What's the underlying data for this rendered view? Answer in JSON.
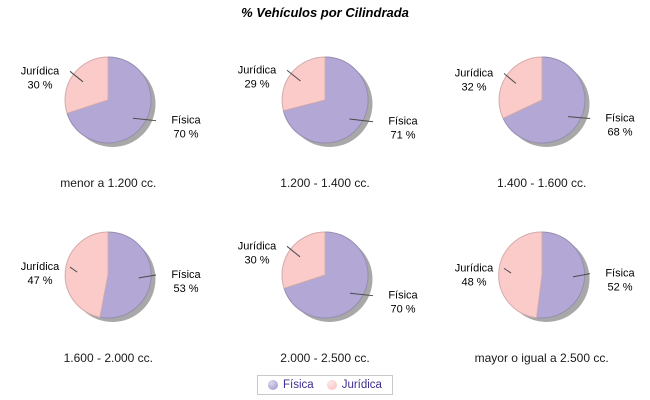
{
  "header": {
    "title": "% Vehículos por Cilindrada"
  },
  "chart_data": {
    "type": "pie",
    "title": "% Vehículos por Cilindrada",
    "legend_position": "bottom",
    "value_suffix": " %",
    "legend": [
      {
        "label": "Física",
        "color": "#b3a8d5"
      },
      {
        "label": "Jurídica",
        "color": "#fbcbca"
      }
    ],
    "style": {
      "shadow_color": "#9e9e9e",
      "leader_line_color": "#4a4a4a",
      "label_text_color": "#000000",
      "legend_text_color": "#3f2d8f",
      "legend_border_color": "#c9c9c9"
    },
    "charts": [
      {
        "category": "menor a 1.200 cc.",
        "labels": [
          "Física",
          "Jurídica"
        ],
        "values": [
          70,
          30
        ],
        "value_labels": [
          "70 %",
          "30 %"
        ]
      },
      {
        "category": "1.200 - 1.400 cc.",
        "labels": [
          "Física",
          "Jurídica"
        ],
        "values": [
          71,
          29
        ],
        "value_labels": [
          "71 %",
          "29 %"
        ]
      },
      {
        "category": "1.400 - 1.600 cc.",
        "labels": [
          "Física",
          "Jurídica"
        ],
        "values": [
          68,
          32
        ],
        "value_labels": [
          "68 %",
          "32 %"
        ]
      },
      {
        "category": "1.600 - 2.000 cc.",
        "labels": [
          "Física",
          "Jurídica"
        ],
        "values": [
          53,
          47
        ],
        "value_labels": [
          "53 %",
          "47 %"
        ]
      },
      {
        "category": "2.000 - 2.500 cc.",
        "labels": [
          "Física",
          "Jurídica"
        ],
        "values": [
          70,
          30
        ],
        "value_labels": [
          "70 %",
          "30 %"
        ]
      },
      {
        "category": "mayor o igual a 2.500 cc.",
        "labels": [
          "Física",
          "Jurídica"
        ],
        "values": [
          52,
          48
        ],
        "value_labels": [
          "52 %",
          "48 %"
        ]
      }
    ]
  }
}
